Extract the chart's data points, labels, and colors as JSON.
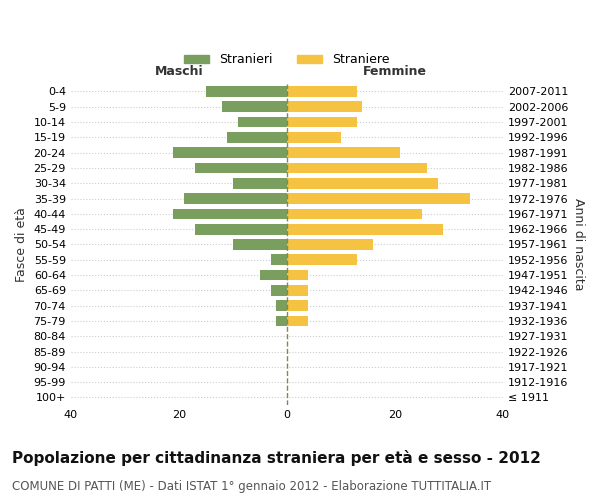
{
  "age_groups": [
    "100+",
    "95-99",
    "90-94",
    "85-89",
    "80-84",
    "75-79",
    "70-74",
    "65-69",
    "60-64",
    "55-59",
    "50-54",
    "45-49",
    "40-44",
    "35-39",
    "30-34",
    "25-29",
    "20-24",
    "15-19",
    "10-14",
    "5-9",
    "0-4"
  ],
  "birth_years": [
    "≤ 1911",
    "1912-1916",
    "1917-1921",
    "1922-1926",
    "1927-1931",
    "1932-1936",
    "1937-1941",
    "1942-1946",
    "1947-1951",
    "1952-1956",
    "1957-1961",
    "1962-1966",
    "1967-1971",
    "1972-1976",
    "1977-1981",
    "1982-1986",
    "1987-1991",
    "1992-1996",
    "1997-2001",
    "2002-2006",
    "2007-2011"
  ],
  "maschi": [
    0,
    0,
    0,
    0,
    0,
    2,
    2,
    3,
    5,
    3,
    10,
    17,
    21,
    19,
    10,
    17,
    21,
    11,
    9,
    12,
    15
  ],
  "femmine": [
    0,
    0,
    0,
    0,
    0,
    4,
    4,
    4,
    4,
    13,
    16,
    29,
    25,
    34,
    28,
    26,
    21,
    10,
    13,
    14,
    13
  ],
  "male_color": "#7a9e5e",
  "female_color": "#f5c242",
  "xlim": 40,
  "title": "Popolazione per cittadinanza straniera per età e sesso - 2012",
  "subtitle": "COMUNE DI PATTI (ME) - Dati ISTAT 1° gennaio 2012 - Elaborazione TUTTITALIA.IT",
  "xlabel_left": "Maschi",
  "xlabel_right": "Femmine",
  "ylabel_left": "Fasce di età",
  "ylabel_right": "Anni di nascita",
  "legend_stranieri": "Stranieri",
  "legend_straniere": "Straniere",
  "background_color": "#ffffff",
  "grid_color": "#cccccc",
  "title_fontsize": 11,
  "subtitle_fontsize": 8.5,
  "tick_fontsize": 8,
  "label_fontsize": 9
}
